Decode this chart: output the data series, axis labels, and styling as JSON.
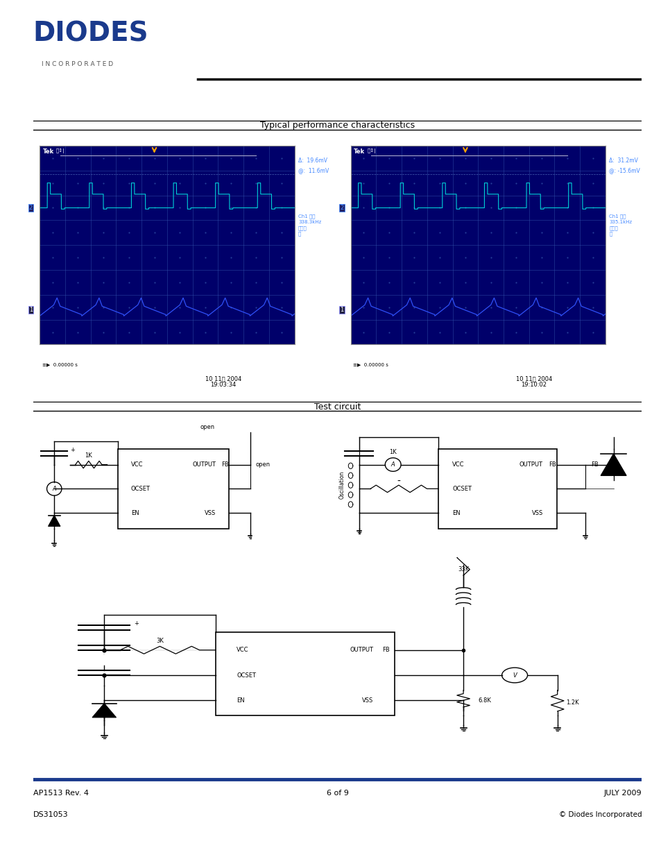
{
  "bg_color": "#ffffff",
  "header_line_color": "#000000",
  "footer_line_color": "#1a3a8c",
  "logo_text": "DIODES",
  "logo_sub": "I N C O R P O R A T E D",
  "logo_color": "#1a3a8c",
  "osc_section_label": "Typical performance characteristics",
  "circuit_section_label": "Test circuit",
  "footer_left1": "AP1513 Rev. 4",
  "footer_left2": "DS31053",
  "footer_center": "6 of 9",
  "footer_right1": "JULY 2009",
  "footer_right2": "© Diodes Incorporated",
  "osc1_delta": "Δ:  19.6mV",
  "osc1_at": "@:  11.6mV",
  "osc1_freq": "Ch1 频率\n338.3kHz\n低频幅\n模",
  "osc1_date": "10 11月 2004",
  "osc1_time2": "19:03:34",
  "osc2_delta": "Δ:  31.2mV",
  "osc2_at": "@: -15.6mV",
  "osc2_freq": "Ch1 频率\n335.1kHz\n低频幅\n模",
  "osc2_date": "10 11月 2004",
  "osc2_time2": "19:10:02"
}
